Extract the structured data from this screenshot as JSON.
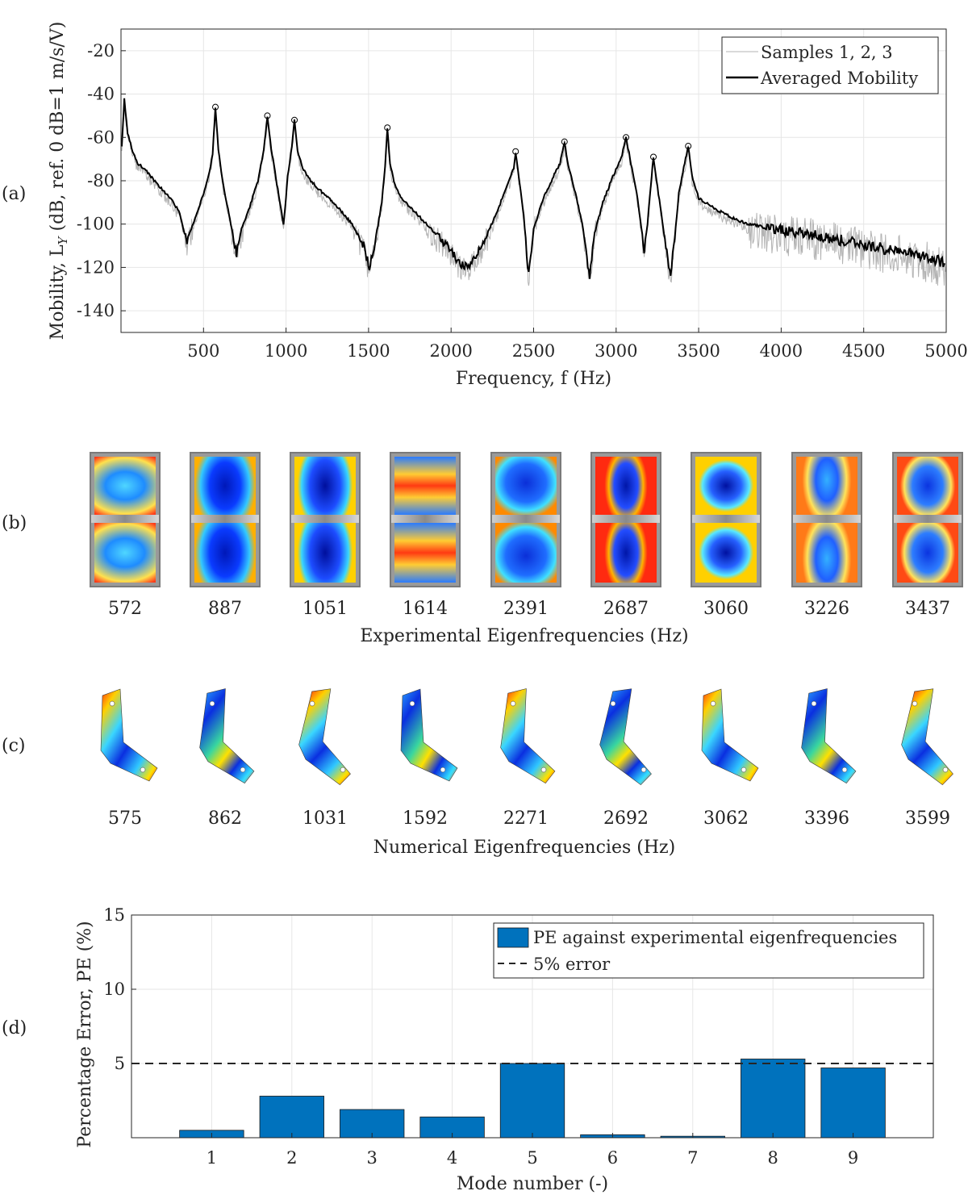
{
  "panel_labels": [
    "(a)",
    "(b)",
    "(c)",
    "(d)"
  ],
  "chart_data": [
    {
      "type": "line",
      "title": "",
      "xlabel": "Frequency, f (Hz)",
      "ylabel": "Mobility, L",
      "ylabel_sub": "Y",
      "ylabel_tail": " (dB, ref. 0 dB=1 m/s/V)",
      "xlim": [
        0,
        5000
      ],
      "ylim": [
        -150,
        -10
      ],
      "xticks": [
        500,
        1000,
        1500,
        2000,
        2500,
        3000,
        3500,
        4000,
        4500,
        5000
      ],
      "yticks": [
        -140,
        -120,
        -100,
        -80,
        -60,
        -40,
        -20
      ],
      "grid": true,
      "legend_position": "top-right",
      "legend": [
        "Samples 1, 2, 3",
        "Averaged Mobility"
      ],
      "series": [
        {
          "name": "Averaged Mobility",
          "x": [
            5,
            20,
            40,
            70,
            100,
            150,
            200,
            250,
            300,
            350,
            385,
            400,
            420,
            460,
            500,
            530,
            555,
            572,
            590,
            620,
            660,
            700,
            730,
            780,
            830,
            865,
            887,
            910,
            950,
            985,
            995,
            1010,
            1035,
            1051,
            1070,
            1100,
            1150,
            1200,
            1300,
            1400,
            1470,
            1505,
            1540,
            1580,
            1600,
            1614,
            1630,
            1660,
            1700,
            1800,
            1900,
            2000,
            2050,
            2100,
            2150,
            2200,
            2280,
            2350,
            2380,
            2391,
            2410,
            2440,
            2470,
            2500,
            2560,
            2620,
            2660,
            2687,
            2710,
            2760,
            2800,
            2840,
            2870,
            2920,
            2980,
            3030,
            3060,
            3090,
            3130,
            3170,
            3190,
            3210,
            3226,
            3245,
            3290,
            3330,
            3355,
            3380,
            3410,
            3437,
            3460,
            3500,
            3600,
            3700,
            3800,
            4000,
            4200,
            4400,
            4600,
            4800,
            5000
          ],
          "y": [
            -64,
            -42,
            -58,
            -66,
            -72,
            -75,
            -80,
            -84,
            -88,
            -94,
            -104,
            -108,
            -103,
            -95,
            -86,
            -78,
            -68,
            -46,
            -66,
            -82,
            -98,
            -114,
            -102,
            -92,
            -80,
            -66,
            -50,
            -65,
            -84,
            -100,
            -92,
            -78,
            -64,
            -52,
            -66,
            -74,
            -80,
            -84,
            -91,
            -100,
            -110,
            -120,
            -108,
            -90,
            -74,
            -56,
            -72,
            -82,
            -88,
            -96,
            -104,
            -112,
            -118,
            -120,
            -115,
            -108,
            -94,
            -80,
            -74,
            -67,
            -78,
            -96,
            -124,
            -102,
            -88,
            -78,
            -72,
            -62,
            -73,
            -88,
            -102,
            -125,
            -104,
            -90,
            -78,
            -70,
            -60,
            -72,
            -88,
            -112,
            -100,
            -82,
            -69,
            -80,
            -104,
            -124,
            -106,
            -86,
            -74,
            -64,
            -78,
            -88,
            -93,
            -97,
            -100,
            -103,
            -105,
            -108,
            -111,
            -114,
            -118
          ]
        }
      ],
      "peaks": [
        [
          572,
          -46
        ],
        [
          887,
          -50
        ],
        [
          1051,
          -52
        ],
        [
          1614,
          -55.5
        ],
        [
          2391,
          -66.5
        ],
        [
          2687,
          -62
        ],
        [
          3060,
          -60
        ],
        [
          3226,
          -69
        ],
        [
          3437,
          -64
        ]
      ]
    },
    {
      "type": "bar",
      "title": "",
      "xlabel": "Mode number (-)",
      "ylabel": "Percentage Error, PE (%)",
      "categories": [
        "1",
        "2",
        "3",
        "4",
        "5",
        "6",
        "7",
        "8",
        "9"
      ],
      "values": [
        0.5,
        2.8,
        1.9,
        1.4,
        5.0,
        0.2,
        0.1,
        5.3,
        4.7
      ],
      "ylim": [
        0,
        15
      ],
      "yticks": [
        5,
        10,
        15
      ],
      "grid": true,
      "legend_position": "top-right",
      "legend": [
        "PE against experimental eigenfrequencies",
        "5% error"
      ],
      "threshold": 5,
      "bar_color": "#0072BD"
    }
  ],
  "experimental": {
    "caption": "Experimental Eigenfrequencies (Hz)",
    "frequencies": [
      "572",
      "887",
      "1051",
      "1614",
      "2391",
      "2687",
      "3060",
      "3226",
      "3437"
    ]
  },
  "numerical": {
    "caption": "Numerical Eigenfrequencies (Hz)",
    "frequencies": [
      "575",
      "862",
      "1031",
      "1592",
      "2271",
      "2692",
      "3062",
      "3396",
      "3599"
    ]
  },
  "colors": {
    "average_line": "#000000",
    "samples_line": "#b3b3b3",
    "bar": "#0072BD",
    "grid": "#e6e6e6"
  }
}
